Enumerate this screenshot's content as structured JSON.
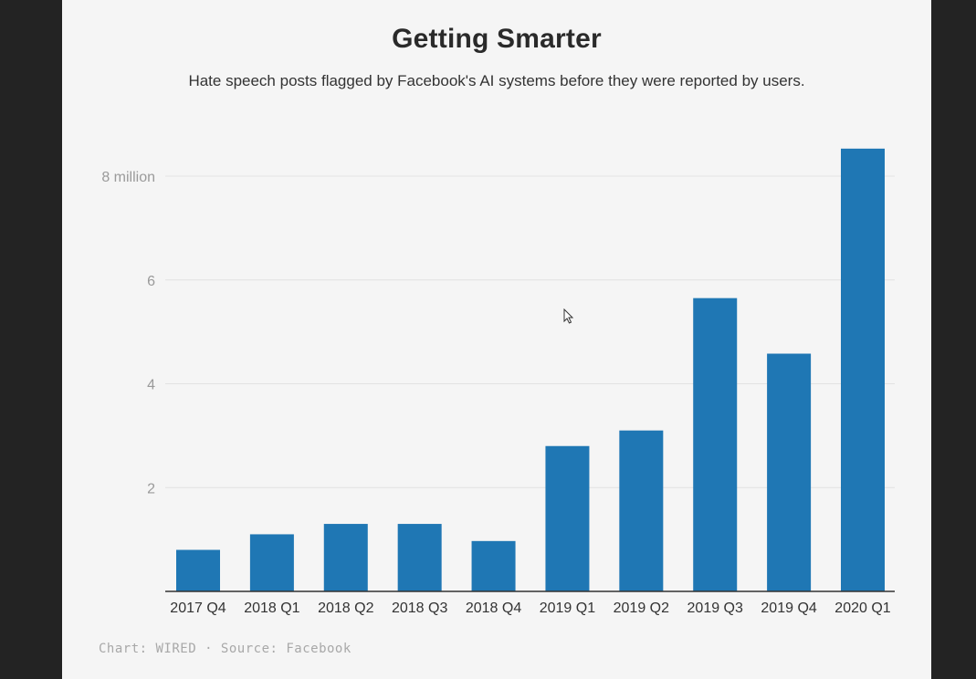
{
  "chart_data": {
    "type": "bar",
    "title": "Getting Smarter",
    "subtitle": "Hate speech posts flagged by Facebook's AI systems before they were reported by users.",
    "categories": [
      "2017 Q4",
      "2018 Q1",
      "2018 Q2",
      "2018 Q3",
      "2018 Q4",
      "2019 Q1",
      "2019 Q2",
      "2019 Q3",
      "2019 Q4",
      "2020 Q1"
    ],
    "values": [
      0.8,
      1.1,
      1.3,
      1.3,
      0.97,
      2.8,
      3.1,
      5.65,
      4.58,
      8.53
    ],
    "y_ticks": [
      {
        "value": 2,
        "label": "2"
      },
      {
        "value": 4,
        "label": "4"
      },
      {
        "value": 6,
        "label": "6"
      },
      {
        "value": 8,
        "label": "8 million"
      }
    ],
    "ylim": [
      0,
      8.6
    ],
    "grid": true,
    "bar_color": "#1f77b4",
    "source": "Chart: WIRED · Source: Facebook"
  }
}
